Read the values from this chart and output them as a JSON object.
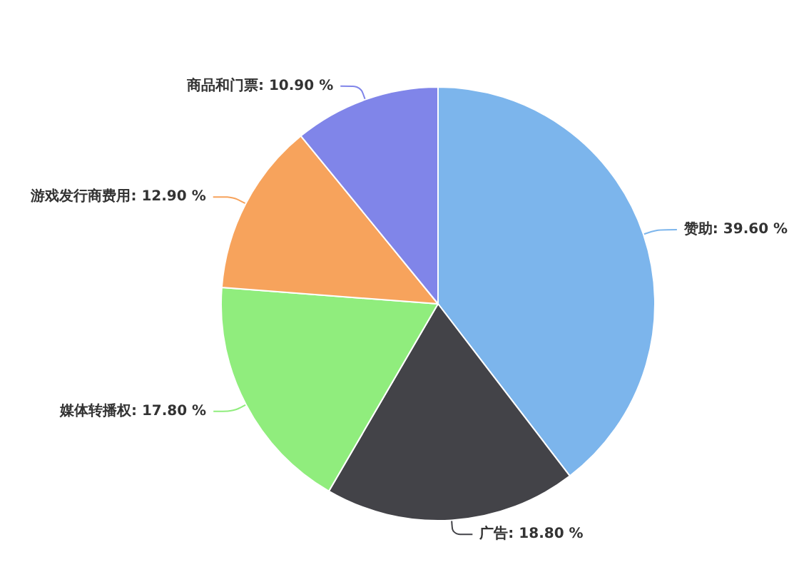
{
  "chart_data": {
    "type": "pie",
    "categories": [
      "赞助",
      "广告",
      "媒体转播权",
      "游戏发行商费用",
      "商品和门票"
    ],
    "values": [
      39.6,
      18.8,
      17.8,
      12.9,
      10.9
    ],
    "colors": [
      "#7cb5ec",
      "#434348",
      "#90ed7d",
      "#f7a35c",
      "#8085e9"
    ],
    "value_labels": [
      "39.60 %",
      "18.80 %",
      "17.80 %",
      "12.90 %",
      "10.90 %"
    ],
    "legend": false
  }
}
